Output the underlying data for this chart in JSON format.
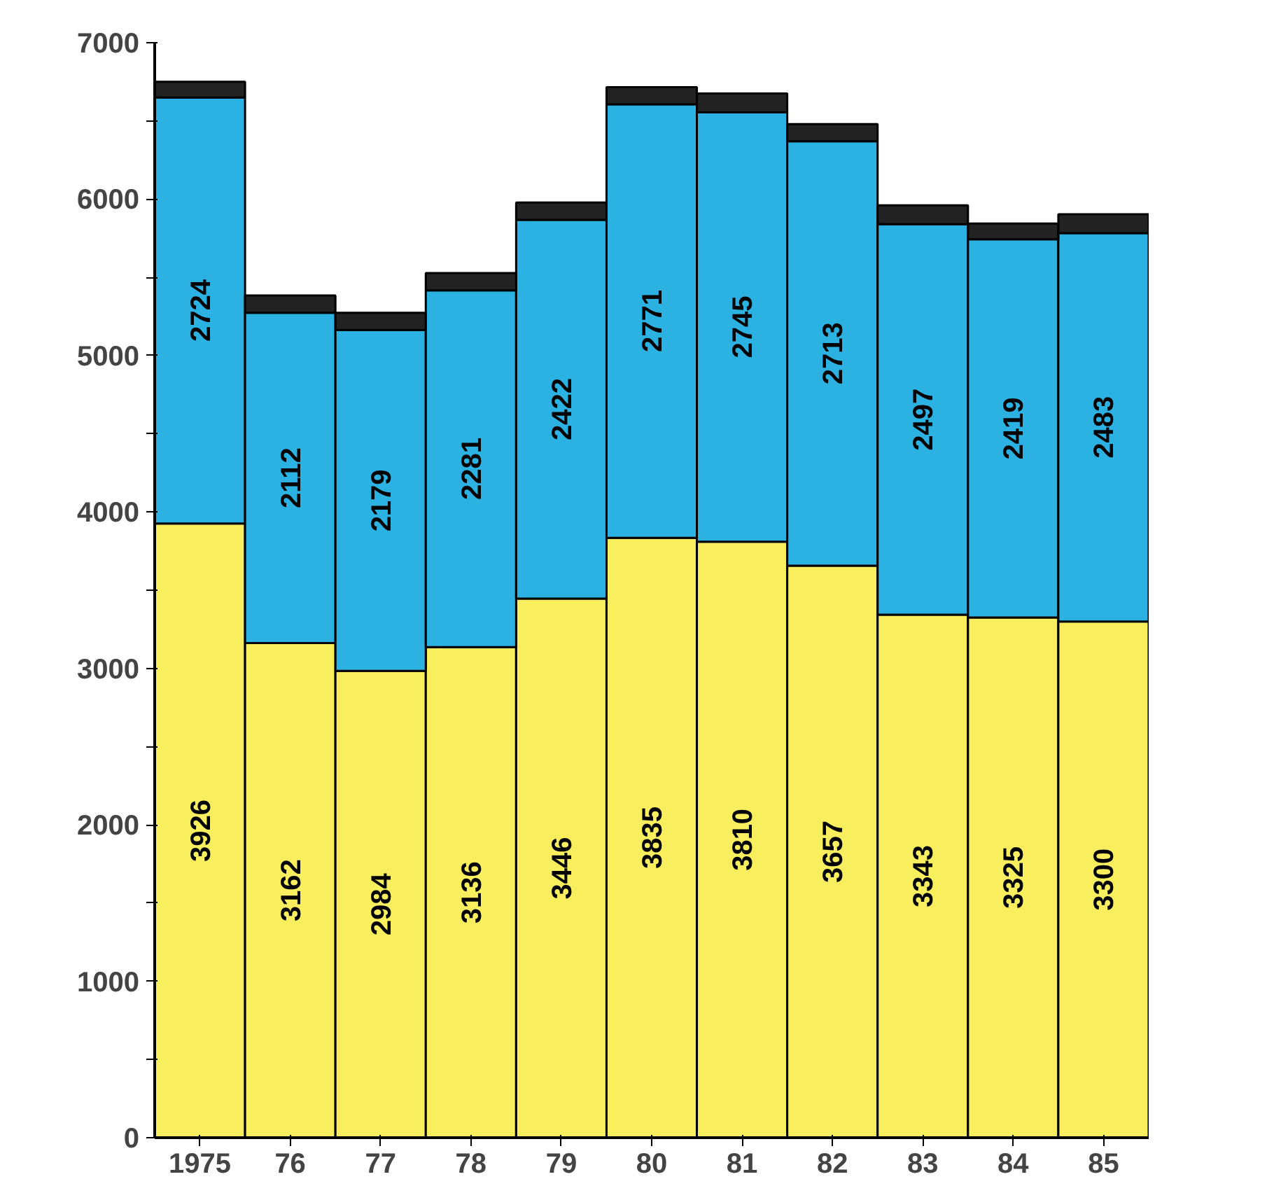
{
  "chart_data": {
    "type": "bar",
    "stacked": true,
    "categories": [
      "1975",
      "76",
      "77",
      "78",
      "79",
      "80",
      "81",
      "82",
      "83",
      "84",
      "85"
    ],
    "series": [
      {
        "color": "#f8ee5e",
        "values": [
          3926,
          3162,
          2984,
          3136,
          3446,
          3835,
          3810,
          3657,
          3343,
          3325,
          3300
        ],
        "value_labels": [
          "3926",
          "3162",
          "2984",
          "3136",
          "3446",
          "3835",
          "3810",
          "3657",
          "3343",
          "3325",
          "3300"
        ]
      },
      {
        "color": "#2cb2e2",
        "values": [
          2724,
          2112,
          2179,
          2281,
          2422,
          2771,
          2745,
          2713,
          2497,
          2419,
          2483
        ],
        "value_labels": [
          "2724",
          "2112",
          "2179",
          "2281",
          "2422",
          "2771",
          "2745",
          "2713",
          "2497",
          "2419",
          "2483"
        ]
      },
      {
        "color": "#222222",
        "values": [
          100,
          110,
          110,
          110,
          110,
          110,
          120,
          110,
          120,
          100,
          120
        ]
      }
    ],
    "ylim": [
      0,
      7000
    ],
    "yticks": [
      0,
      {
        "value": 500,
        "label": null
      },
      1000,
      {
        "value": 1500,
        "label": null
      },
      2000,
      {
        "value": 2500,
        "label": null
      },
      3000,
      {
        "value": 3500,
        "label": null
      },
      4000,
      {
        "value": 4500,
        "label": null
      },
      5000,
      {
        "value": 5500,
        "label": null
      },
      6000,
      {
        "value": 6500,
        "label": null
      },
      7000
    ],
    "grid": false
  }
}
